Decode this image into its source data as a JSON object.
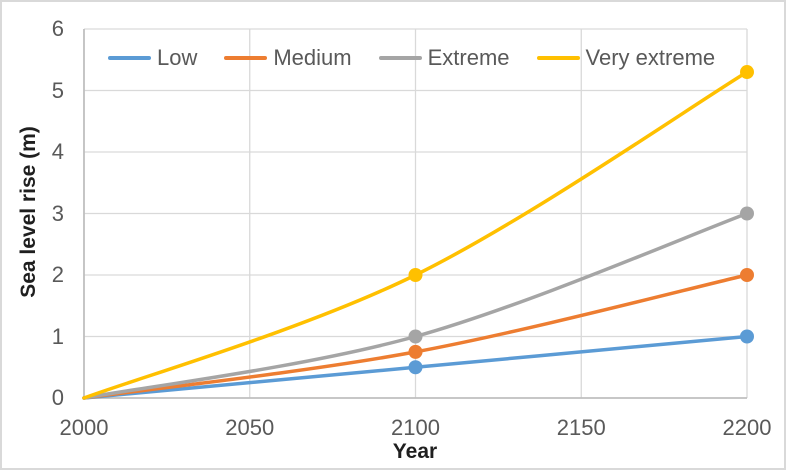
{
  "chart_data": {
    "type": "line",
    "x": [
      2000,
      2100,
      2200
    ],
    "series": [
      {
        "name": "Low",
        "color": "#5B9BD5",
        "values": [
          0,
          0.5,
          1.0
        ]
      },
      {
        "name": "Medium",
        "color": "#ED7D31",
        "values": [
          0,
          0.75,
          2.0
        ]
      },
      {
        "name": "Extreme",
        "color": "#A5A5A5",
        "values": [
          0,
          1.0,
          3.0
        ]
      },
      {
        "name": "Very extreme",
        "color": "#FFC000",
        "values": [
          0,
          2.0,
          5.3
        ]
      }
    ],
    "title": "",
    "xlabel": "Year",
    "ylabel": "Sea level rise (m)",
    "xlim": [
      2000,
      2200
    ],
    "ylim": [
      0,
      6
    ],
    "x_ticks": [
      2000,
      2050,
      2100,
      2150,
      2200
    ],
    "y_ticks": [
      0,
      1,
      2,
      3,
      4,
      5,
      6
    ],
    "grid": true,
    "smooth_lines": true,
    "markers": "circles on 2100 and 2200 points",
    "legend_position": "top-inside",
    "style": {
      "grid_color": "#D9D9D9",
      "axis_color": "#BFBFBF",
      "tick_color": "#595959",
      "axis_title_color": "#1F1F1F",
      "border_color": "#D9D9D9",
      "background": "#FFFFFF"
    }
  }
}
